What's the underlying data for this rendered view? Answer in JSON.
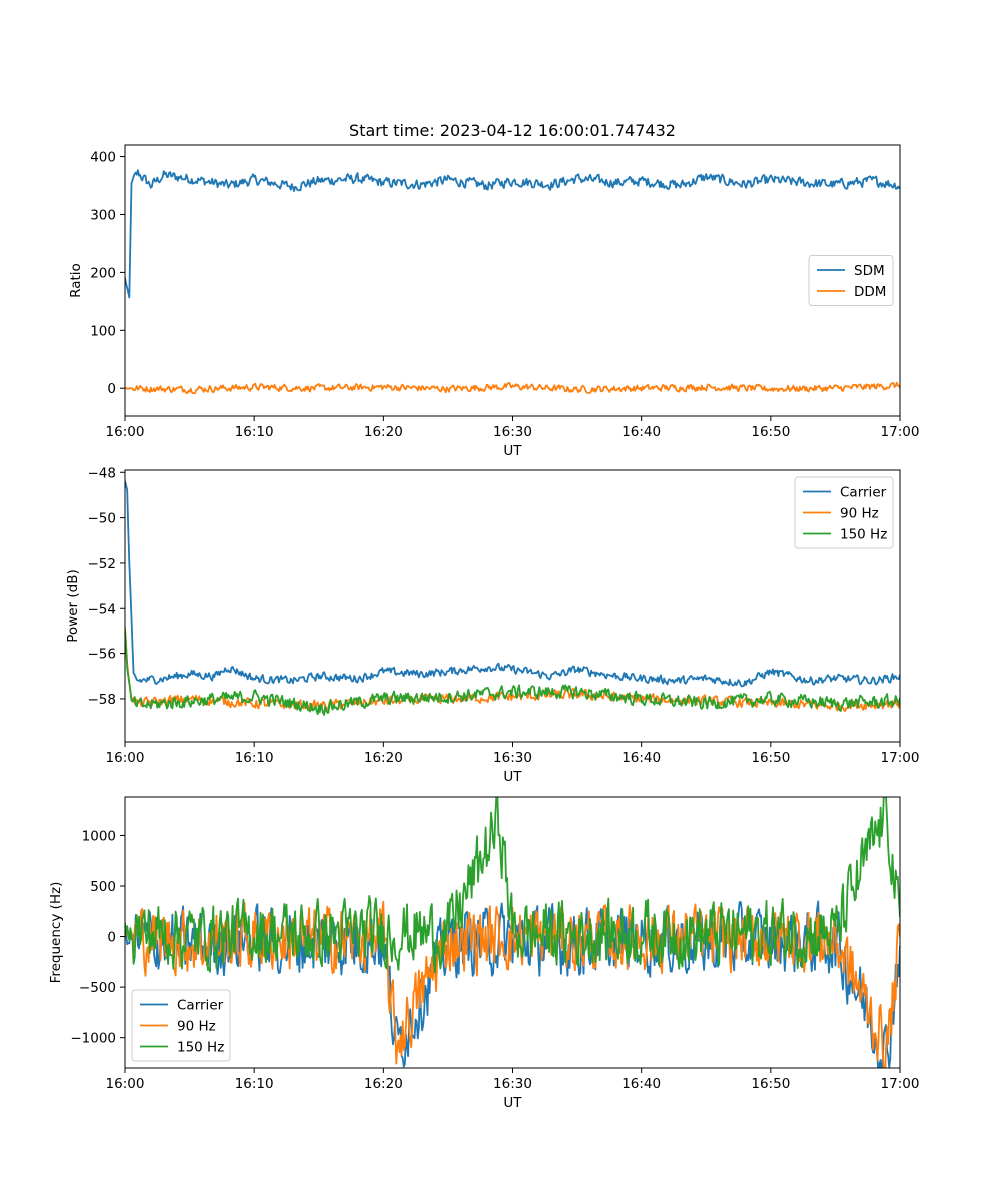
{
  "chart_data": [
    {
      "type": "line",
      "title": "Start time: 2023-04-12 16:00:01.747432",
      "xlabel": "UT",
      "ylabel": "Ratio",
      "xlim": [
        "16:00",
        "17:00"
      ],
      "ylim": [
        -48,
        420
      ],
      "xticks": [
        "16:00",
        "16:10",
        "16:20",
        "16:30",
        "16:40",
        "16:50",
        "17:00"
      ],
      "yticks": [
        0,
        100,
        200,
        300,
        400
      ],
      "grid": false,
      "legend_position": "center-right",
      "series": [
        {
          "name": "SDM",
          "color": "#1f77b4",
          "x": [
            "16:00",
            "16:00:20",
            "16:00:30",
            "16:01",
            "16:02",
            "16:03",
            "16:05",
            "16:08",
            "16:10",
            "16:13",
            "16:15",
            "16:18",
            "16:20",
            "16:23",
            "16:25",
            "16:28",
            "16:30",
            "16:33",
            "16:35",
            "16:38",
            "16:40",
            "16:43",
            "16:45",
            "16:48",
            "16:50",
            "16:53",
            "16:55",
            "16:58",
            "17:00"
          ],
          "y": [
            190,
            155,
            355,
            372,
            350,
            368,
            362,
            350,
            360,
            348,
            358,
            362,
            355,
            352,
            360,
            350,
            358,
            352,
            362,
            355,
            358,
            350,
            365,
            352,
            360,
            354,
            352,
            358,
            350
          ],
          "noise": 12
        },
        {
          "name": "DDM",
          "color": "#ff7f0e",
          "x": [
            "16:00",
            "16:05",
            "16:10",
            "16:15",
            "16:20",
            "16:25",
            "16:30",
            "16:35",
            "16:40",
            "16:45",
            "16:50",
            "16:55",
            "17:00"
          ],
          "y": [
            0,
            -2,
            2,
            0,
            2,
            -1,
            3,
            -2,
            0,
            2,
            -1,
            0,
            5
          ],
          "noise": 8
        }
      ]
    },
    {
      "type": "line",
      "title": "",
      "xlabel": "UT",
      "ylabel": "Power (dB)",
      "xlim": [
        "16:00",
        "17:00"
      ],
      "ylim": [
        -59.9,
        -47.9
      ],
      "xticks": [
        "16:00",
        "16:10",
        "16:20",
        "16:30",
        "16:40",
        "16:50",
        "17:00"
      ],
      "yticks": [
        -48,
        -50,
        -52,
        -54,
        -56,
        -58
      ],
      "grid": false,
      "legend_position": "upper-right",
      "series": [
        {
          "name": "Carrier",
          "color": "#1f77b4",
          "x": [
            "16:00",
            "16:00:10",
            "16:00:20",
            "16:00:40",
            "16:01",
            "16:03",
            "16:05",
            "16:07",
            "16:08",
            "16:10",
            "16:13",
            "16:15",
            "16:18",
            "16:20",
            "16:23",
            "16:25",
            "16:28",
            "16:30",
            "16:33",
            "16:35",
            "16:38",
            "16:40",
            "16:43",
            "16:45",
            "16:48",
            "16:50",
            "16:53",
            "16:55",
            "16:58",
            "17:00"
          ],
          "y": [
            -48.4,
            -48.8,
            -52,
            -57,
            -57.2,
            -57.1,
            -56.9,
            -57,
            -56.6,
            -57.1,
            -57.2,
            -57,
            -57.1,
            -56.8,
            -56.9,
            -56.8,
            -56.6,
            -56.7,
            -57,
            -56.7,
            -57,
            -57.1,
            -57.2,
            -57.1,
            -57.3,
            -56.8,
            -57.2,
            -57.1,
            -57.2,
            -57.0
          ],
          "noise": 0.25
        },
        {
          "name": "90 Hz",
          "color": "#ff7f0e",
          "x": [
            "16:00",
            "16:00:10",
            "16:00:30",
            "16:01",
            "16:05",
            "16:10",
            "16:15",
            "16:20",
            "16:25",
            "16:30",
            "16:35",
            "16:40",
            "16:45",
            "16:50",
            "16:55",
            "17:00"
          ],
          "y": [
            -54.8,
            -56.5,
            -58,
            -58.2,
            -58,
            -58.2,
            -58.3,
            -58.1,
            -58,
            -57.9,
            -57.8,
            -58,
            -58.1,
            -58.2,
            -58.3,
            -58.2
          ],
          "noise": 0.3
        },
        {
          "name": "150 Hz",
          "color": "#2ca02c",
          "x": [
            "16:00",
            "16:00:10",
            "16:00:30",
            "16:01",
            "16:05",
            "16:10",
            "16:15",
            "16:20",
            "16:25",
            "16:30",
            "16:35",
            "16:40",
            "16:45",
            "16:50",
            "16:55",
            "17:00"
          ],
          "y": [
            -55.0,
            -56.6,
            -58.1,
            -58.3,
            -58.1,
            -57.9,
            -58.4,
            -58.0,
            -57.9,
            -57.7,
            -57.7,
            -58.0,
            -58.2,
            -58.0,
            -58.2,
            -58.1
          ],
          "noise": 0.4
        }
      ]
    },
    {
      "type": "line",
      "title": "",
      "xlabel": "UT",
      "ylabel": "Frequency (Hz)",
      "xlim": [
        "16:00",
        "17:00"
      ],
      "ylim": [
        -1300,
        1380
      ],
      "xticks": [
        "16:00",
        "16:10",
        "16:20",
        "16:30",
        "16:40",
        "16:50",
        "17:00"
      ],
      "yticks": [
        -1000,
        -500,
        0,
        500,
        1000
      ],
      "grid": false,
      "legend_position": "lower-left",
      "series": [
        {
          "name": "Carrier",
          "color": "#1f77b4",
          "x": [
            "16:00",
            "16:05",
            "16:10",
            "16:15",
            "16:20",
            "16:21",
            "16:25",
            "16:29",
            "16:30",
            "16:35",
            "16:40",
            "16:45",
            "16:50",
            "16:55",
            "16:59",
            "17:00"
          ],
          "y": [
            0,
            -80,
            -40,
            -60,
            -40,
            -1100,
            -60,
            -30,
            -40,
            -60,
            -30,
            -60,
            -40,
            -50,
            -1180,
            -40
          ],
          "noise": 450
        },
        {
          "name": "90 Hz",
          "color": "#ff7f0e",
          "x": [
            "16:00",
            "16:05",
            "16:10",
            "16:15",
            "16:20",
            "16:21",
            "16:25",
            "16:29",
            "16:30",
            "16:35",
            "16:40",
            "16:45",
            "16:50",
            "16:55",
            "16:59",
            "17:00"
          ],
          "y": [
            20,
            -50,
            -10,
            -30,
            -10,
            -1050,
            -30,
            0,
            -10,
            -30,
            0,
            -30,
            -10,
            -20,
            -1120,
            -10
          ],
          "noise": 440
        },
        {
          "name": "150 Hz",
          "color": "#2ca02c",
          "x": [
            "16:00",
            "16:05",
            "16:10",
            "16:15",
            "16:20",
            "16:25",
            "16:29",
            "16:30",
            "16:35",
            "16:40",
            "16:45",
            "16:50",
            "16:55",
            "16:59",
            "17:00"
          ],
          "y": [
            60,
            0,
            40,
            20,
            40,
            30,
            1150,
            40,
            20,
            50,
            20,
            40,
            30,
            1250,
            40
          ],
          "noise": 440
        }
      ]
    }
  ]
}
